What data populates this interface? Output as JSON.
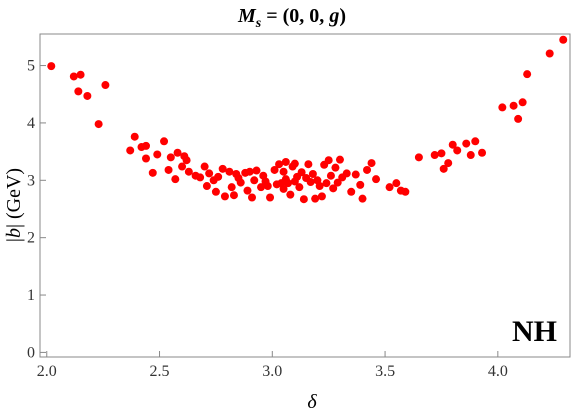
{
  "chart_data": {
    "type": "scatter",
    "title_parts": {
      "lhs": "M",
      "sub": "s",
      "rhs": " = (0,  0,  ",
      "var": "g",
      "close": ")"
    },
    "xlabel": "δ",
    "ylabel_parts": {
      "abs_open": "|",
      "var": "b",
      "abs_close": "|",
      "unit": " (GeV)"
    },
    "annotation": "NH",
    "xlim": [
      1.97,
      4.32
    ],
    "ylim": [
      -0.08,
      5.55
    ],
    "xticks": [
      2.0,
      2.5,
      3.0,
      3.5,
      4.0
    ],
    "xtick_labels": [
      "2.0",
      "2.5",
      "3.0",
      "3.5",
      "4.0"
    ],
    "yticks": [
      0,
      1,
      2,
      3,
      4,
      5
    ],
    "ytick_labels": [
      "0",
      "1",
      "2",
      "3",
      "4",
      "5"
    ],
    "grid": false,
    "marker_color": "#ff0000",
    "x": [
      2.02,
      2.12,
      2.15,
      2.14,
      2.18,
      2.23,
      2.26,
      2.37,
      2.39,
      2.42,
      2.44,
      2.44,
      2.47,
      2.49,
      2.52,
      2.54,
      2.55,
      2.57,
      2.58,
      2.6,
      2.61,
      2.62,
      2.63,
      2.66,
      2.68,
      2.7,
      2.71,
      2.72,
      2.74,
      2.75,
      2.76,
      2.78,
      2.79,
      2.81,
      2.82,
      2.83,
      2.84,
      2.85,
      2.86,
      2.88,
      2.89,
      2.9,
      2.91,
      2.92,
      2.93,
      2.95,
      2.96,
      2.97,
      2.98,
      2.99,
      3.01,
      3.02,
      3.03,
      3.04,
      3.05,
      3.05,
      3.06,
      3.06,
      3.07,
      3.08,
      3.09,
      3.1,
      3.1,
      3.11,
      3.12,
      3.13,
      3.14,
      3.15,
      3.16,
      3.17,
      3.18,
      3.19,
      3.2,
      3.21,
      3.22,
      3.23,
      3.24,
      3.25,
      3.26,
      3.27,
      3.28,
      3.29,
      3.3,
      3.31,
      3.33,
      3.35,
      3.37,
      3.39,
      3.4,
      3.42,
      3.44,
      3.46,
      3.52,
      3.55,
      3.57,
      3.59,
      3.65,
      3.72,
      3.75,
      3.76,
      3.78,
      3.8,
      3.82,
      3.86,
      3.88,
      3.9,
      3.93,
      4.02,
      4.07,
      4.09,
      4.11,
      4.13,
      4.23,
      4.29
    ],
    "y": [
      4.99,
      4.81,
      4.84,
      4.55,
      4.47,
      3.98,
      4.66,
      3.52,
      3.76,
      3.58,
      3.6,
      3.38,
      3.13,
      3.45,
      3.68,
      3.18,
      3.4,
      3.02,
      3.48,
      3.24,
      3.42,
      3.35,
      3.15,
      3.08,
      3.05,
      3.24,
      2.9,
      3.12,
      3.0,
      2.8,
      3.06,
      3.2,
      2.72,
      3.15,
      2.88,
      2.74,
      3.11,
      3.04,
      2.96,
      3.13,
      2.82,
      3.15,
      2.7,
      3.0,
      3.17,
      2.88,
      3.08,
      2.98,
      2.9,
      2.7,
      3.18,
      2.93,
      3.28,
      2.95,
      3.15,
      2.85,
      3.32,
      3.02,
      2.95,
      2.75,
      3.24,
      2.98,
      3.29,
      3.06,
      2.88,
      3.14,
      2.67,
      3.04,
      3.28,
      2.97,
      3.11,
      2.68,
      3.0,
      2.9,
      2.72,
      3.27,
      2.95,
      3.35,
      3.08,
      2.86,
      3.22,
      2.96,
      3.36,
      3.05,
      3.12,
      2.8,
      3.1,
      2.92,
      2.68,
      3.18,
      3.3,
      3.02,
      2.88,
      2.95,
      2.82,
      2.8,
      3.4,
      3.44,
      3.47,
      3.2,
      3.3,
      3.62,
      3.52,
      3.64,
      3.44,
      3.68,
      3.48,
      4.27,
      4.3,
      4.07,
      4.36,
      4.85,
      5.21,
      5.45
    ]
  }
}
